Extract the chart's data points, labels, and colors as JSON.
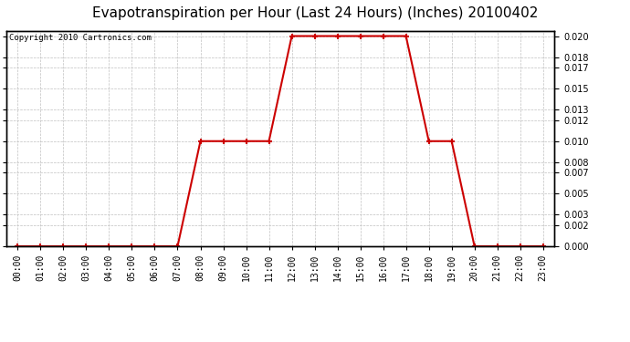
{
  "title": "Evapotranspiration per Hour (Last 24 Hours) (Inches) 20100402",
  "copyright_text": "Copyright 2010 Cartronics.com",
  "hours": [
    0,
    1,
    2,
    3,
    4,
    5,
    6,
    7,
    8,
    9,
    10,
    11,
    12,
    13,
    14,
    15,
    16,
    17,
    18,
    19,
    20,
    21,
    22,
    23
  ],
  "values": [
    0.0,
    0.0,
    0.0,
    0.0,
    0.0,
    0.0,
    0.0,
    0.0,
    0.01,
    0.01,
    0.01,
    0.01,
    0.02,
    0.02,
    0.02,
    0.02,
    0.02,
    0.02,
    0.01,
    0.01,
    0.0,
    0.0,
    0.0,
    0.0
  ],
  "hour_labels": [
    "00:00",
    "01:00",
    "02:00",
    "03:00",
    "04:00",
    "05:00",
    "06:00",
    "07:00",
    "08:00",
    "09:00",
    "10:00",
    "11:00",
    "12:00",
    "13:00",
    "14:00",
    "15:00",
    "16:00",
    "17:00",
    "18:00",
    "19:00",
    "20:00",
    "21:00",
    "22:00",
    "23:00"
  ],
  "yticks": [
    0.0,
    0.002,
    0.003,
    0.005,
    0.007,
    0.008,
    0.01,
    0.012,
    0.013,
    0.015,
    0.017,
    0.018,
    0.02
  ],
  "line_color": "#cc0000",
  "marker_color": "#cc0000",
  "bg_color": "#ffffff",
  "grid_color": "#c0c0c0",
  "title_fontsize": 11,
  "copyright_fontsize": 6.5,
  "tick_fontsize": 7,
  "ylim": [
    0.0,
    0.0205
  ]
}
